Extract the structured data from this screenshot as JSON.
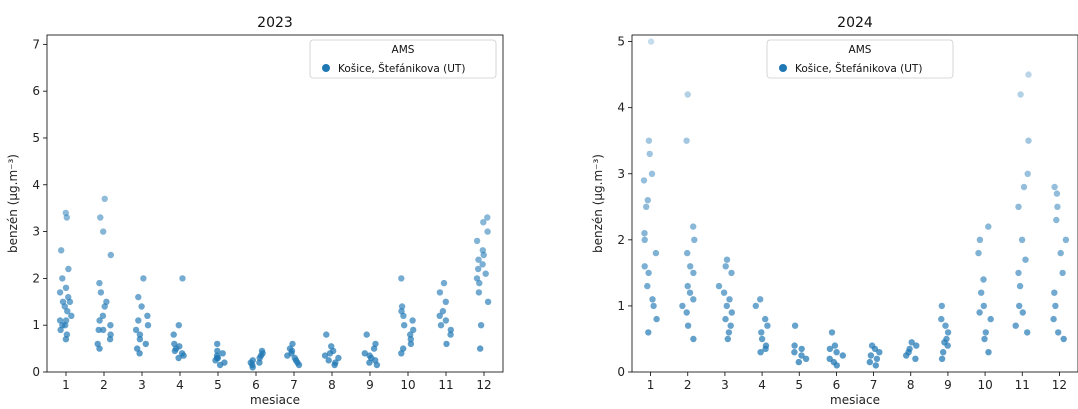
{
  "chart_data": [
    {
      "type": "scatter",
      "style": "strip",
      "title": "2023",
      "xlabel": "mesiace",
      "ylabel": "benzén  (μg.m⁻³)",
      "categories": [
        "1",
        "2",
        "3",
        "4",
        "5",
        "6",
        "7",
        "8",
        "9",
        "10",
        "11",
        "12"
      ],
      "ylim": [
        0,
        7.2
      ],
      "yticks": [
        "0",
        "1",
        "2",
        "3",
        "4",
        "5",
        "6",
        "7"
      ],
      "legend": {
        "title": "AMS",
        "placement": "top-right",
        "entries": [
          "Košice, Štefánikova (UT)"
        ]
      },
      "series": [
        {
          "name": "Košice, Štefánikova (UT)",
          "color": "#1f77b4",
          "values": [
            [
              0.7,
              0.8,
              0.9,
              1.0,
              1.0,
              1.1,
              1.1,
              1.2,
              1.3,
              1.4,
              1.5,
              1.5,
              1.6,
              1.7,
              1.8,
              2.0,
              2.2,
              2.6,
              3.3,
              3.4
            ],
            [
              0.5,
              0.6,
              0.7,
              0.8,
              0.9,
              0.9,
              1.0,
              1.1,
              1.2,
              1.4,
              1.5,
              1.7,
              1.9,
              2.5,
              3.0,
              3.3,
              3.7
            ],
            [
              0.4,
              0.5,
              0.6,
              0.7,
              0.8,
              0.9,
              1.0,
              1.1,
              1.2,
              1.4,
              1.6,
              2.0
            ],
            [
              0.3,
              0.35,
              0.4,
              0.45,
              0.5,
              0.55,
              0.6,
              0.8,
              1.0,
              2.0
            ],
            [
              0.15,
              0.2,
              0.25,
              0.3,
              0.3,
              0.35,
              0.4,
              0.45,
              0.6
            ],
            [
              0.1,
              0.15,
              0.2,
              0.2,
              0.25,
              0.3,
              0.35,
              0.4,
              0.45
            ],
            [
              0.15,
              0.2,
              0.25,
              0.3,
              0.35,
              0.4,
              0.45,
              0.5,
              0.6
            ],
            [
              0.15,
              0.2,
              0.25,
              0.3,
              0.35,
              0.4,
              0.45,
              0.55,
              0.8
            ],
            [
              0.15,
              0.2,
              0.25,
              0.3,
              0.35,
              0.4,
              0.5,
              0.6,
              0.8
            ],
            [
              0.4,
              0.5,
              0.6,
              0.7,
              0.8,
              0.9,
              1.0,
              1.1,
              1.2,
              1.3,
              1.4,
              2.0
            ],
            [
              0.6,
              0.8,
              0.9,
              1.0,
              1.1,
              1.2,
              1.3,
              1.5,
              1.7,
              1.9
            ],
            [
              0.5,
              1.0,
              1.5,
              1.7,
              1.9,
              2.0,
              2.1,
              2.2,
              2.3,
              2.4,
              2.5,
              2.6,
              2.8,
              3.0,
              3.2,
              3.3
            ]
          ]
        }
      ]
    },
    {
      "type": "scatter",
      "style": "strip",
      "title": "2024",
      "xlabel": "mesiace",
      "ylabel": "benzén  (μg.m⁻³)",
      "categories": [
        "1",
        "2",
        "3",
        "4",
        "5",
        "6",
        "7",
        "8",
        "9",
        "10",
        "11",
        "12"
      ],
      "ylim": [
        0,
        5.1
      ],
      "yticks": [
        "0",
        "1",
        "2",
        "3",
        "4",
        "5"
      ],
      "legend": {
        "title": "AMS",
        "placement": "top-center",
        "entries": [
          "Košice, Štefánikova (UT)"
        ]
      },
      "series": [
        {
          "name": "Košice, Štefánikova (UT)",
          "color": "#1f77b4",
          "values": [
            [
              0.6,
              0.8,
              1.0,
              1.1,
              1.3,
              1.5,
              1.6,
              1.8,
              2.0,
              2.1,
              2.5,
              2.6,
              2.9,
              3.0,
              3.3,
              3.5,
              5.0
            ],
            [
              0.5,
              0.7,
              0.9,
              1.0,
              1.1,
              1.2,
              1.3,
              1.5,
              1.6,
              1.8,
              2.0,
              2.2,
              3.5,
              4.2
            ],
            [
              0.5,
              0.6,
              0.7,
              0.8,
              0.9,
              1.0,
              1.1,
              1.2,
              1.3,
              1.5,
              1.6,
              1.7
            ],
            [
              0.3,
              0.35,
              0.4,
              0.5,
              0.6,
              0.7,
              0.8,
              1.0,
              1.1
            ],
            [
              0.15,
              0.2,
              0.25,
              0.3,
              0.35,
              0.4,
              0.7
            ],
            [
              0.1,
              0.15,
              0.2,
              0.25,
              0.3,
              0.35,
              0.4,
              0.6
            ],
            [
              0.1,
              0.15,
              0.2,
              0.25,
              0.3,
              0.35,
              0.4
            ],
            [
              0.2,
              0.25,
              0.3,
              0.35,
              0.4,
              0.45
            ],
            [
              0.2,
              0.3,
              0.4,
              0.45,
              0.5,
              0.6,
              0.7,
              0.8,
              1.0
            ],
            [
              0.3,
              0.5,
              0.6,
              0.8,
              0.9,
              1.0,
              1.2,
              1.4,
              1.8,
              2.0,
              2.2
            ],
            [
              0.6,
              0.7,
              0.9,
              1.0,
              1.3,
              1.5,
              1.7,
              2.0,
              2.5,
              2.8,
              3.0,
              3.5,
              4.2,
              4.5
            ],
            [
              0.5,
              0.6,
              0.8,
              1.0,
              1.2,
              1.5,
              1.8,
              2.0,
              2.3,
              2.5,
              2.7,
              2.8
            ]
          ]
        }
      ]
    }
  ]
}
